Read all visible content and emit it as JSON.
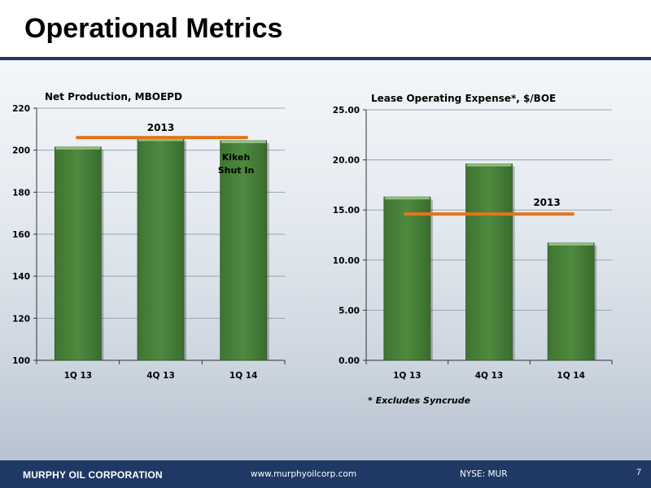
{
  "page": {
    "title": "Operational Metrics",
    "footnote": "* Excludes Syncrude"
  },
  "footer": {
    "company": "MURPHY OIL CORPORATION",
    "url": "www.murphyoilcorp.com",
    "ticker": "NYSE: MUR",
    "page_number": "7"
  },
  "colors": {
    "bar": "#4e8a3f",
    "bar_highlight": "#8fc27c",
    "reference_line": "#e2761c",
    "footer_bg": "#1f3864",
    "gridline": "#9aa5b1"
  },
  "chart_data": [
    {
      "type": "bar",
      "title": "Net Production, MBOEPD",
      "categories": [
        "1Q 13",
        "4Q 13",
        "1Q 14"
      ],
      "values": [
        201.5,
        205.5,
        204.5
      ],
      "ylim": [
        100,
        220
      ],
      "yticks": [
        "100",
        "120",
        "140",
        "160",
        "180",
        "200",
        "220"
      ],
      "ytick_values": [
        100,
        120,
        140,
        160,
        180,
        200,
        220
      ],
      "grid": true,
      "reference": {
        "label": "2013",
        "value": 206
      },
      "annotations": [
        {
          "text_lines": [
            "Kikeh",
            "Shut In"
          ],
          "category": "1Q 14"
        }
      ]
    },
    {
      "type": "bar",
      "title": "Lease Operating Expense*, $/BOE",
      "categories": [
        "1Q 13",
        "4Q 13",
        "1Q 14"
      ],
      "values": [
        16.3,
        19.6,
        11.7
      ],
      "ylim": [
        0,
        25
      ],
      "yticks": [
        "0.00",
        "5.00",
        "10.00",
        "15.00",
        "20.00",
        "25.00"
      ],
      "ytick_values": [
        0,
        5,
        10,
        15,
        20,
        25
      ],
      "grid": true,
      "reference": {
        "label": "2013",
        "value": 14.6
      },
      "annotations": []
    }
  ]
}
